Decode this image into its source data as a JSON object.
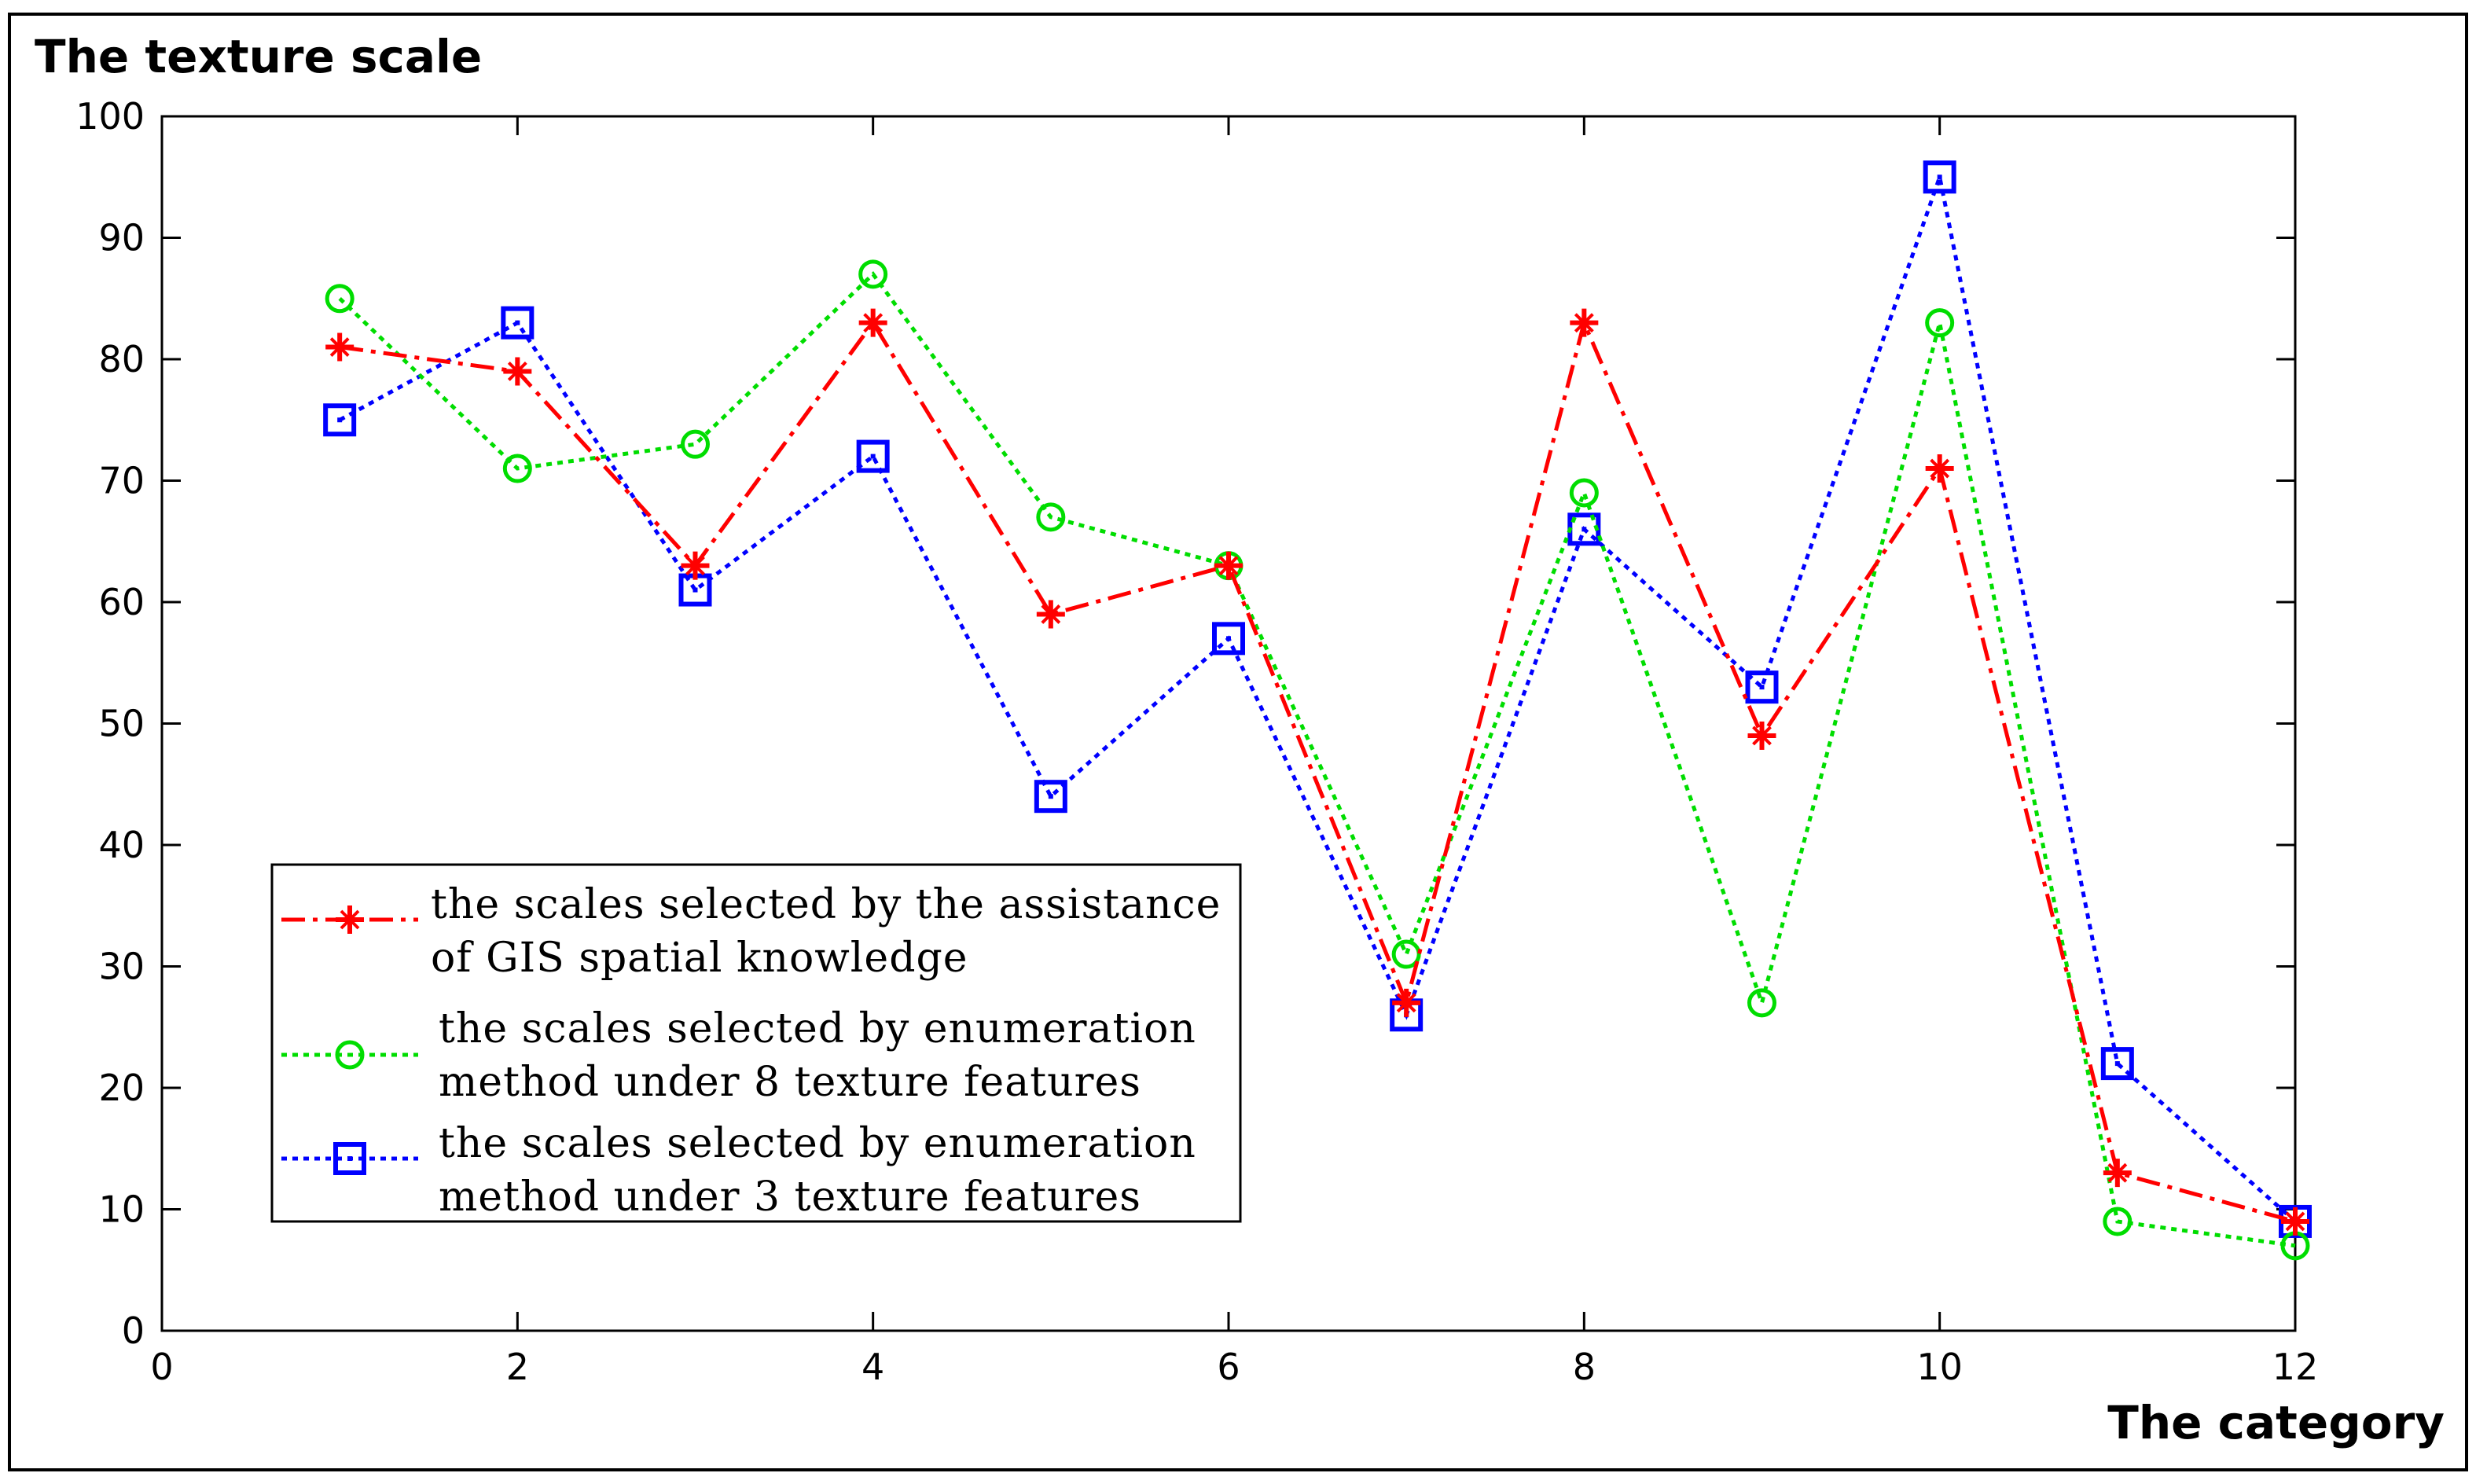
{
  "chart_data": {
    "type": "line",
    "ylabel": "The texture scale",
    "xlabel": "The category",
    "xlim": [
      0,
      12
    ],
    "ylim": [
      0,
      100
    ],
    "xticks": [
      0,
      2,
      4,
      6,
      8,
      10,
      12
    ],
    "yticks": [
      0,
      10,
      20,
      30,
      40,
      50,
      60,
      70,
      80,
      90,
      100
    ],
    "grid": false,
    "legend_position": "lower-left",
    "x": [
      1,
      2,
      3,
      4,
      5,
      6,
      7,
      8,
      9,
      10,
      11,
      12
    ],
    "series": [
      {
        "name_lines": [
          "the scales selected by the assistance",
          "of GIS spatial knowledge"
        ],
        "color": "#ff0000",
        "line_style": "dash-dot",
        "marker": "star",
        "values": [
          81,
          79,
          63,
          83,
          59,
          63,
          27,
          83,
          49,
          71,
          13,
          9
        ]
      },
      {
        "name_lines": [
          "the scales selected by enumeration",
          "method under 8 texture features"
        ],
        "color": "#00dd00",
        "line_style": "dotted",
        "marker": "circle",
        "values": [
          85,
          71,
          73,
          87,
          67,
          63,
          31,
          69,
          27,
          83,
          9,
          7
        ]
      },
      {
        "name_lines": [
          "the scales selected by enumeration",
          "method under 3 texture features"
        ],
        "color": "#0000ff",
        "line_style": "dotted",
        "marker": "square",
        "values": [
          75,
          83,
          61,
          72,
          44,
          57,
          26,
          66,
          53,
          95,
          22,
          9
        ]
      }
    ]
  }
}
